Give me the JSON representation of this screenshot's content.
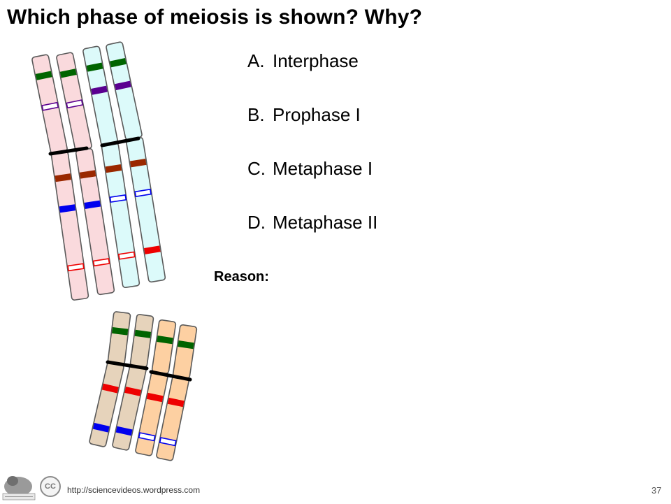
{
  "title": "Which phase of meiosis is shown? Why?",
  "options": [
    {
      "letter": "A.",
      "label": "Interphase"
    },
    {
      "letter": "B.",
      "label": "Prophase I"
    },
    {
      "letter": "C.",
      "label": "Metaphase I"
    },
    {
      "letter": "D.",
      "label": "Metaphase II"
    }
  ],
  "reason_label": "Reason:",
  "footer": {
    "url": "http://sciencevideos.wordpress.com",
    "page_number": "37",
    "cc_badge": "CC"
  },
  "colors": {
    "pink_chromatid": "#fadadd",
    "cyan_chromatid": "#dcfafa",
    "tan_chromatid": "#e6d3bb",
    "peach_chromatid": "#fdd0a2",
    "band_green": "#006400",
    "band_purple": "#5a0090",
    "band_brown": "#9a2800",
    "band_blue": "#0000ee",
    "band_red": "#ee0000",
    "centromere": "#000000"
  }
}
